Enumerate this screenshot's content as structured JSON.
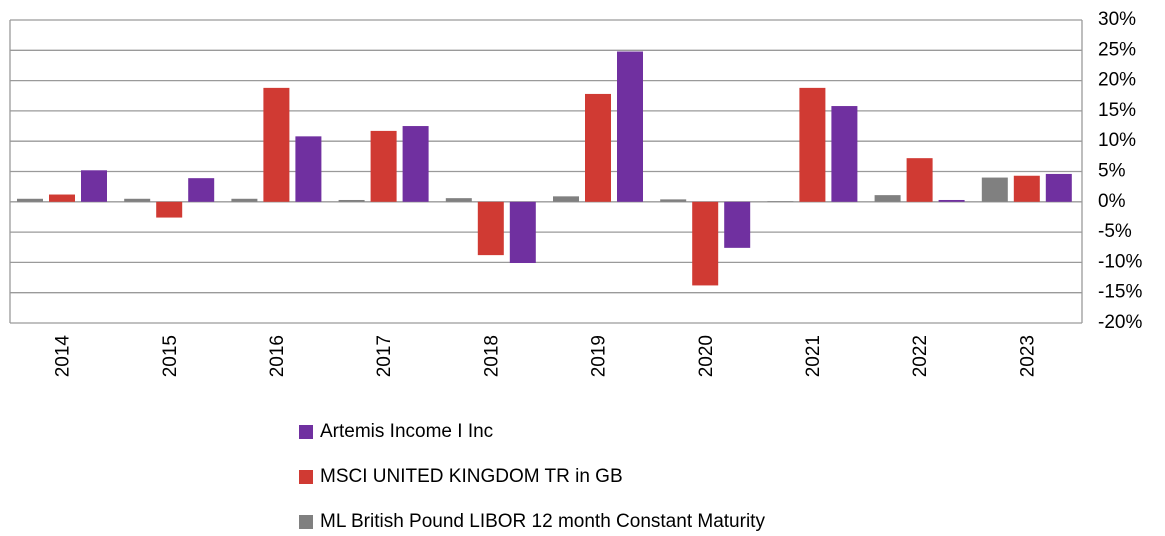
{
  "chart_data": {
    "type": "bar",
    "categories": [
      "2014",
      "2015",
      "2016",
      "2017",
      "2018",
      "2019",
      "2020",
      "2021",
      "2022",
      "2023"
    ],
    "series": [
      {
        "name": "Artemis Income I Inc",
        "color": "#7030a0",
        "values": [
          5.2,
          3.9,
          10.8,
          12.5,
          -10.1,
          24.8,
          -7.6,
          15.8,
          0.3,
          4.6
        ]
      },
      {
        "name": "MSCI UNITED KINGDOM TR in GB",
        "color": "#d03a33",
        "values": [
          1.2,
          -2.6,
          18.8,
          11.7,
          -8.8,
          17.8,
          -13.8,
          18.8,
          7.2,
          4.3
        ]
      },
      {
        "name": "ML British Pound LIBOR 12 month Constant Maturity",
        "color": "#808080",
        "values": [
          0.5,
          0.5,
          0.5,
          0.3,
          0.6,
          0.9,
          0.4,
          0.1,
          1.1,
          4.0
        ]
      }
    ],
    "ylim": [
      -20,
      30
    ],
    "yticks": [
      {
        "value": -20,
        "label": "-20%"
      },
      {
        "value": -15,
        "label": "-15%"
      },
      {
        "value": -10,
        "label": "-10%"
      },
      {
        "value": -5,
        "label": "-5%"
      },
      {
        "value": 0,
        "label": "0%"
      },
      {
        "value": 5,
        "label": "5%"
      },
      {
        "value": 10,
        "label": "10%"
      },
      {
        "value": 15,
        "label": "15%"
      },
      {
        "value": 20,
        "label": "20%"
      },
      {
        "value": 25,
        "label": "25%"
      },
      {
        "value": 30,
        "label": "30%"
      }
    ],
    "grid": true
  }
}
